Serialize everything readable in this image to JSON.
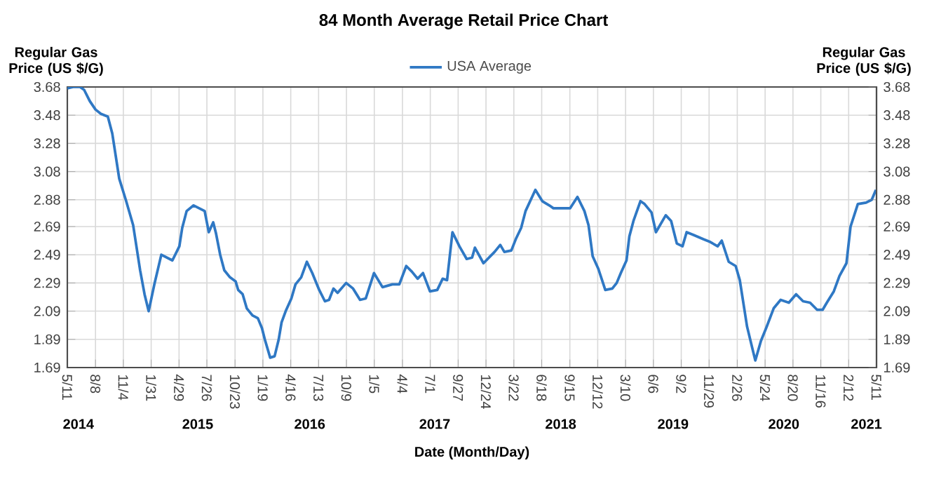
{
  "chart_data": {
    "type": "line",
    "title": "84 Month Average Retail Price Chart",
    "xlabel": "Date (Month/Day)",
    "ylabel": "Regular Gas Price (US $/G)",
    "y2label": "Regular Gas Price (US $/G)",
    "x": [
      "2014-05-11",
      "2014-05-29",
      "2014-06-20",
      "2014-07-03",
      "2014-07-21",
      "2014-08-08",
      "2014-08-25",
      "2014-09-16",
      "2014-09-30",
      "2014-10-22",
      "2014-11-13",
      "2014-12-05",
      "2014-12-27",
      "2015-01-10",
      "2015-01-23",
      "2015-02-10",
      "2015-03-04",
      "2015-04-08",
      "2015-04-30",
      "2015-05-09",
      "2015-05-23",
      "2015-06-14",
      "2015-07-19",
      "2015-08-01",
      "2015-08-15",
      "2015-08-24",
      "2015-09-06",
      "2015-09-19",
      "2015-10-07",
      "2015-10-25",
      "2015-11-02",
      "2015-11-16",
      "2015-11-29",
      "2015-12-17",
      "2016-01-03",
      "2016-01-16",
      "2016-01-25",
      "2016-02-11",
      "2016-02-25",
      "2016-03-09",
      "2016-03-18",
      "2016-03-31",
      "2016-04-18",
      "2016-05-01",
      "2016-05-19",
      "2016-06-06",
      "2016-06-23",
      "2016-07-15",
      "2016-08-02",
      "2016-08-15",
      "2016-08-29",
      "2016-09-11",
      "2016-10-08",
      "2016-10-30",
      "2016-11-21",
      "2016-12-09",
      "2017-01-04",
      "2017-01-31",
      "2017-03-03",
      "2017-03-25",
      "2017-04-16",
      "2017-05-04",
      "2017-05-22",
      "2017-06-08",
      "2017-06-30",
      "2017-07-23",
      "2017-08-09",
      "2017-08-23",
      "2017-09-09",
      "2017-10-01",
      "2017-10-24",
      "2017-11-10",
      "2017-11-19",
      "2017-12-16",
      "2018-01-20",
      "2018-02-07",
      "2018-02-20",
      "2018-03-14",
      "2018-03-28",
      "2018-04-14",
      "2018-04-28",
      "2018-05-29",
      "2018-06-20",
      "2018-07-12",
      "2018-07-25",
      "2018-08-25",
      "2018-09-16",
      "2018-10-09",
      "2018-10-31",
      "2018-11-13",
      "2018-11-26",
      "2018-12-14",
      "2019-01-05",
      "2019-01-27",
      "2019-02-10",
      "2019-02-23",
      "2019-03-13",
      "2019-03-22",
      "2019-04-04",
      "2019-04-26",
      "2019-05-09",
      "2019-05-31",
      "2019-06-14",
      "2019-07-15",
      "2019-08-01",
      "2019-08-19",
      "2019-09-06",
      "2019-09-19",
      "2019-10-11",
      "2019-11-11",
      "2019-12-03",
      "2019-12-26",
      "2020-01-08",
      "2020-01-30",
      "2020-02-21",
      "2020-03-05",
      "2020-03-28",
      "2020-04-23",
      "2020-05-11",
      "2020-05-29",
      "2020-06-20",
      "2020-07-12",
      "2020-08-07",
      "2020-08-30",
      "2020-09-21",
      "2020-10-13",
      "2020-11-04",
      "2020-11-22",
      "2020-12-05",
      "2020-12-27",
      "2021-01-14",
      "2021-02-05",
      "2021-02-18",
      "2021-03-13",
      "2021-04-08",
      "2021-04-26",
      "2021-05-09"
    ],
    "series": [
      {
        "name": "USA Average",
        "color": "#2f78c4",
        "values": [
          3.67,
          3.68,
          3.68,
          3.66,
          3.58,
          3.52,
          3.49,
          3.47,
          3.35,
          3.03,
          2.87,
          2.7,
          2.38,
          2.21,
          2.09,
          2.28,
          2.49,
          2.45,
          2.55,
          2.68,
          2.8,
          2.84,
          2.8,
          2.65,
          2.72,
          2.64,
          2.49,
          2.38,
          2.33,
          2.3,
          2.24,
          2.21,
          2.11,
          2.06,
          2.04,
          1.97,
          1.89,
          1.76,
          1.77,
          1.89,
          2.01,
          2.09,
          2.18,
          2.28,
          2.33,
          2.44,
          2.36,
          2.24,
          2.16,
          2.17,
          2.25,
          2.22,
          2.29,
          2.25,
          2.17,
          2.18,
          2.36,
          2.26,
          2.28,
          2.28,
          2.41,
          2.37,
          2.32,
          2.36,
          2.23,
          2.24,
          2.32,
          2.31,
          2.65,
          2.55,
          2.46,
          2.47,
          2.54,
          2.43,
          2.51,
          2.56,
          2.51,
          2.52,
          2.6,
          2.68,
          2.8,
          2.95,
          2.87,
          2.84,
          2.82,
          2.82,
          2.82,
          2.9,
          2.8,
          2.7,
          2.48,
          2.39,
          2.24,
          2.25,
          2.29,
          2.36,
          2.45,
          2.62,
          2.73,
          2.87,
          2.85,
          2.79,
          2.65,
          2.77,
          2.73,
          2.57,
          2.55,
          2.65,
          2.63,
          2.6,
          2.58,
          2.55,
          2.59,
          2.44,
          2.41,
          2.31,
          1.98,
          1.74,
          1.88,
          1.98,
          2.11,
          2.17,
          2.15,
          2.21,
          2.16,
          2.15,
          2.1,
          2.1,
          2.15,
          2.23,
          2.34,
          2.43,
          2.69,
          2.85,
          2.86,
          2.88,
          2.95
        ]
      }
    ],
    "xlim": [
      "2014-05-11",
      "2021-05-11"
    ],
    "xticks": [
      {
        "value": "2014-05-11",
        "label": "5/11"
      },
      {
        "value": "2014-08-08",
        "label": "8/8"
      },
      {
        "value": "2014-11-04",
        "label": "11/4"
      },
      {
        "value": "2015-01-31",
        "label": "1/31"
      },
      {
        "value": "2015-04-29",
        "label": "4/29"
      },
      {
        "value": "2015-07-26",
        "label": "7/26"
      },
      {
        "value": "2015-10-23",
        "label": "10/23"
      },
      {
        "value": "2016-01-19",
        "label": "1/19"
      },
      {
        "value": "2016-04-16",
        "label": "4/16"
      },
      {
        "value": "2016-07-13",
        "label": "7/13"
      },
      {
        "value": "2016-10-09",
        "label": "10/9"
      },
      {
        "value": "2017-01-05",
        "label": "1/5"
      },
      {
        "value": "2017-04-04",
        "label": "4/4"
      },
      {
        "value": "2017-07-01",
        "label": "7/1"
      },
      {
        "value": "2017-09-27",
        "label": "9/27"
      },
      {
        "value": "2017-12-24",
        "label": "12/24"
      },
      {
        "value": "2018-03-22",
        "label": "3/22"
      },
      {
        "value": "2018-06-18",
        "label": "6/18"
      },
      {
        "value": "2018-09-15",
        "label": "9/15"
      },
      {
        "value": "2018-12-12",
        "label": "12/12"
      },
      {
        "value": "2019-03-10",
        "label": "3/10"
      },
      {
        "value": "2019-06-06",
        "label": "6/6"
      },
      {
        "value": "2019-09-02",
        "label": "9/2"
      },
      {
        "value": "2019-11-29",
        "label": "11/29"
      },
      {
        "value": "2020-02-26",
        "label": "2/26"
      },
      {
        "value": "2020-05-24",
        "label": "5/24"
      },
      {
        "value": "2020-08-20",
        "label": "8/20"
      },
      {
        "value": "2020-11-16",
        "label": "11/16"
      },
      {
        "value": "2021-02-12",
        "label": "2/12"
      },
      {
        "value": "2021-05-11",
        "label": "5/11"
      }
    ],
    "x2lim": [
      "2014-05-11",
      "2021-05-11"
    ],
    "x2ticks": [
      {
        "value": "2014-06-15",
        "label": "2014"
      },
      {
        "value": "2015-06-27",
        "label": "2015"
      },
      {
        "value": "2016-06-15",
        "label": "2016"
      },
      {
        "value": "2017-07-15",
        "label": "2017"
      },
      {
        "value": "2018-08-17",
        "label": "2018"
      },
      {
        "value": "2019-08-07",
        "label": "2019"
      },
      {
        "value": "2020-07-22",
        "label": "2020"
      },
      {
        "value": "2021-04-09",
        "label": "2021"
      }
    ],
    "ylim": [
      1.69,
      3.68
    ],
    "yticks": [
      1.69,
      1.89,
      2.09,
      2.29,
      2.49,
      2.69,
      2.88,
      3.08,
      3.28,
      3.48,
      3.68
    ],
    "y2lim": [
      1.69,
      3.68
    ],
    "y2ticks": [
      1.69,
      1.89,
      2.09,
      2.29,
      2.49,
      2.69,
      2.88,
      3.08,
      3.28,
      3.48,
      3.68
    ],
    "grid": true,
    "legend": "top",
    "marker": "none",
    "line_style": "solid"
  }
}
